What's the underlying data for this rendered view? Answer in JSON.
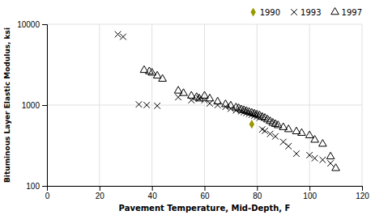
{
  "chart_data": {
    "type": "scatter",
    "xlabel": "Pavement Temperature, Mid-Depth, F",
    "ylabel": "Bituminous Layer Elastic Modulus, ksi",
    "xlim": [
      0,
      120
    ],
    "ylim": [
      100,
      10000
    ],
    "xticks": [
      0,
      20,
      40,
      60,
      80,
      100,
      120
    ],
    "yticks": [
      100,
      1000,
      10000
    ],
    "log": "y",
    "grid": true,
    "legend": "upper right",
    "series": [
      {
        "name": "1990",
        "color": "#999900",
        "marker": "diamond",
        "x": [
          78
        ],
        "values": [
          580
        ]
      },
      {
        "name": "1993",
        "color": "#000000",
        "marker": "x",
        "x": [
          27,
          29,
          35,
          38,
          42,
          50,
          55,
          58,
          60,
          62,
          65,
          68,
          70,
          72,
          74,
          75,
          76,
          77,
          78,
          79,
          80,
          81,
          82,
          83,
          85,
          87,
          90,
          92,
          95,
          100,
          102,
          105,
          108
        ],
        "values": [
          7500,
          7000,
          1020,
          1000,
          980,
          1250,
          1150,
          1200,
          1150,
          1050,
          1000,
          950,
          900,
          860,
          840,
          820,
          800,
          780,
          760,
          740,
          720,
          700,
          500,
          480,
          440,
          410,
          350,
          310,
          250,
          240,
          220,
          210,
          190
        ]
      },
      {
        "name": "1997",
        "color": "#000000",
        "marker": "triangle-open",
        "x": [
          37,
          39,
          40,
          42,
          44,
          50,
          52,
          55,
          57,
          58,
          60,
          62,
          65,
          68,
          70,
          72,
          73,
          74,
          75,
          76,
          77,
          78,
          79,
          80,
          81,
          82,
          83,
          84,
          85,
          86,
          87,
          88,
          90,
          92,
          95,
          97,
          100,
          102,
          105,
          108,
          110
        ],
        "values": [
          2700,
          2600,
          2500,
          2300,
          2100,
          1500,
          1400,
          1300,
          1250,
          1200,
          1300,
          1200,
          1100,
          1020,
          980,
          930,
          910,
          880,
          860,
          840,
          820,
          800,
          780,
          760,
          740,
          710,
          690,
          660,
          630,
          600,
          580,
          560,
          530,
          500,
          470,
          450,
          420,
          370,
          330,
          230,
          165
        ]
      }
    ]
  }
}
